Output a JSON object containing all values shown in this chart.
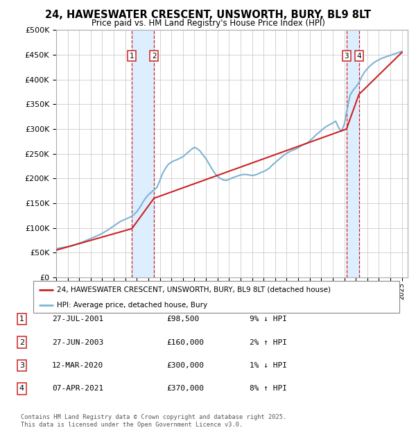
{
  "title": "24, HAWESWATER CRESCENT, UNSWORTH, BURY, BL9 8LT",
  "subtitle": "Price paid vs. HM Land Registry's House Price Index (HPI)",
  "ylim": [
    0,
    500000
  ],
  "xlim_start": 1995.0,
  "xlim_end": 2025.5,
  "transactions": [
    {
      "num": 1,
      "date": "27-JUL-2001",
      "price": 98500,
      "hpi_diff": "9% ↓ HPI",
      "year": 2001.57
    },
    {
      "num": 2,
      "date": "27-JUN-2003",
      "price": 160000,
      "hpi_diff": "2% ↑ HPI",
      "year": 2003.49
    },
    {
      "num": 3,
      "date": "12-MAR-2020",
      "price": 300000,
      "hpi_diff": "1% ↓ HPI",
      "year": 2020.19
    },
    {
      "num": 4,
      "date": "07-APR-2021",
      "price": 370000,
      "hpi_diff": "8% ↑ HPI",
      "year": 2021.27
    }
  ],
  "hpi_line_color": "#7fb3d3",
  "property_line_color": "#cc2222",
  "transaction_dashed_color": "#cc2222",
  "shade_color": "#ddeeff",
  "legend_label_property": "24, HAWESWATER CRESCENT, UNSWORTH, BURY, BL9 8LT (detached house)",
  "legend_label_hpi": "HPI: Average price, detached house, Bury",
  "footer": "Contains HM Land Registry data © Crown copyright and database right 2025.\nThis data is licensed under the Open Government Licence v3.0.",
  "hpi_data_x": [
    1995.0,
    1995.25,
    1995.5,
    1995.75,
    1996.0,
    1996.25,
    1996.5,
    1996.75,
    1997.0,
    1997.25,
    1997.5,
    1997.75,
    1998.0,
    1998.25,
    1998.5,
    1998.75,
    1999.0,
    1999.25,
    1999.5,
    1999.75,
    2000.0,
    2000.25,
    2000.5,
    2000.75,
    2001.0,
    2001.25,
    2001.5,
    2001.75,
    2002.0,
    2002.25,
    2002.5,
    2002.75,
    2003.0,
    2003.25,
    2003.5,
    2003.75,
    2004.0,
    2004.25,
    2004.5,
    2004.75,
    2005.0,
    2005.25,
    2005.5,
    2005.75,
    2006.0,
    2006.25,
    2006.5,
    2006.75,
    2007.0,
    2007.25,
    2007.5,
    2007.75,
    2008.0,
    2008.25,
    2008.5,
    2008.75,
    2009.0,
    2009.25,
    2009.5,
    2009.75,
    2010.0,
    2010.25,
    2010.5,
    2010.75,
    2011.0,
    2011.25,
    2011.5,
    2011.75,
    2012.0,
    2012.25,
    2012.5,
    2012.75,
    2013.0,
    2013.25,
    2013.5,
    2013.75,
    2014.0,
    2014.25,
    2014.5,
    2014.75,
    2015.0,
    2015.25,
    2015.5,
    2015.75,
    2016.0,
    2016.25,
    2016.5,
    2016.75,
    2017.0,
    2017.25,
    2017.5,
    2017.75,
    2018.0,
    2018.25,
    2018.5,
    2018.75,
    2019.0,
    2019.25,
    2019.5,
    2019.75,
    2020.0,
    2020.25,
    2020.5,
    2020.75,
    2021.0,
    2021.25,
    2021.5,
    2021.75,
    2022.0,
    2022.25,
    2022.5,
    2022.75,
    2023.0,
    2023.25,
    2023.5,
    2023.75,
    2024.0,
    2024.25,
    2024.5,
    2024.75,
    2025.0
  ],
  "hpi_data_y": [
    58000,
    59000,
    60000,
    61000,
    62000,
    63500,
    65000,
    67000,
    69000,
    71000,
    73500,
    76000,
    78500,
    81000,
    83500,
    86000,
    89000,
    92500,
    96000,
    100000,
    104000,
    108000,
    112000,
    115000,
    117500,
    120000,
    123000,
    127000,
    133000,
    141000,
    151000,
    160000,
    167000,
    172000,
    177000,
    182000,
    196000,
    211000,
    221000,
    229000,
    233000,
    236000,
    238000,
    241000,
    244000,
    249000,
    254000,
    259000,
    263000,
    260000,
    255000,
    247000,
    240000,
    230000,
    220000,
    211000,
    204000,
    200000,
    197000,
    196000,
    198000,
    201000,
    203000,
    205000,
    207000,
    208000,
    208000,
    207000,
    206000,
    207000,
    209000,
    212000,
    214000,
    217000,
    221000,
    227000,
    232000,
    237000,
    242000,
    247000,
    251000,
    254000,
    257000,
    259000,
    262000,
    266000,
    269000,
    271000,
    276000,
    281000,
    287000,
    292000,
    297000,
    302000,
    306000,
    309000,
    312000,
    316000,
    303000,
    295000,
    310000,
    340000,
    368000,
    378000,
    385000,
    393000,
    405000,
    415000,
    422000,
    428000,
    433000,
    437000,
    440000,
    443000,
    445000,
    447000,
    449000,
    451000,
    453000,
    455000,
    457000
  ],
  "property_data_x": [
    1995.0,
    2001.57,
    2003.49,
    2020.19,
    2021.27,
    2025.0
  ],
  "property_data_y": [
    55000,
    98500,
    160000,
    300000,
    370000,
    455000
  ]
}
